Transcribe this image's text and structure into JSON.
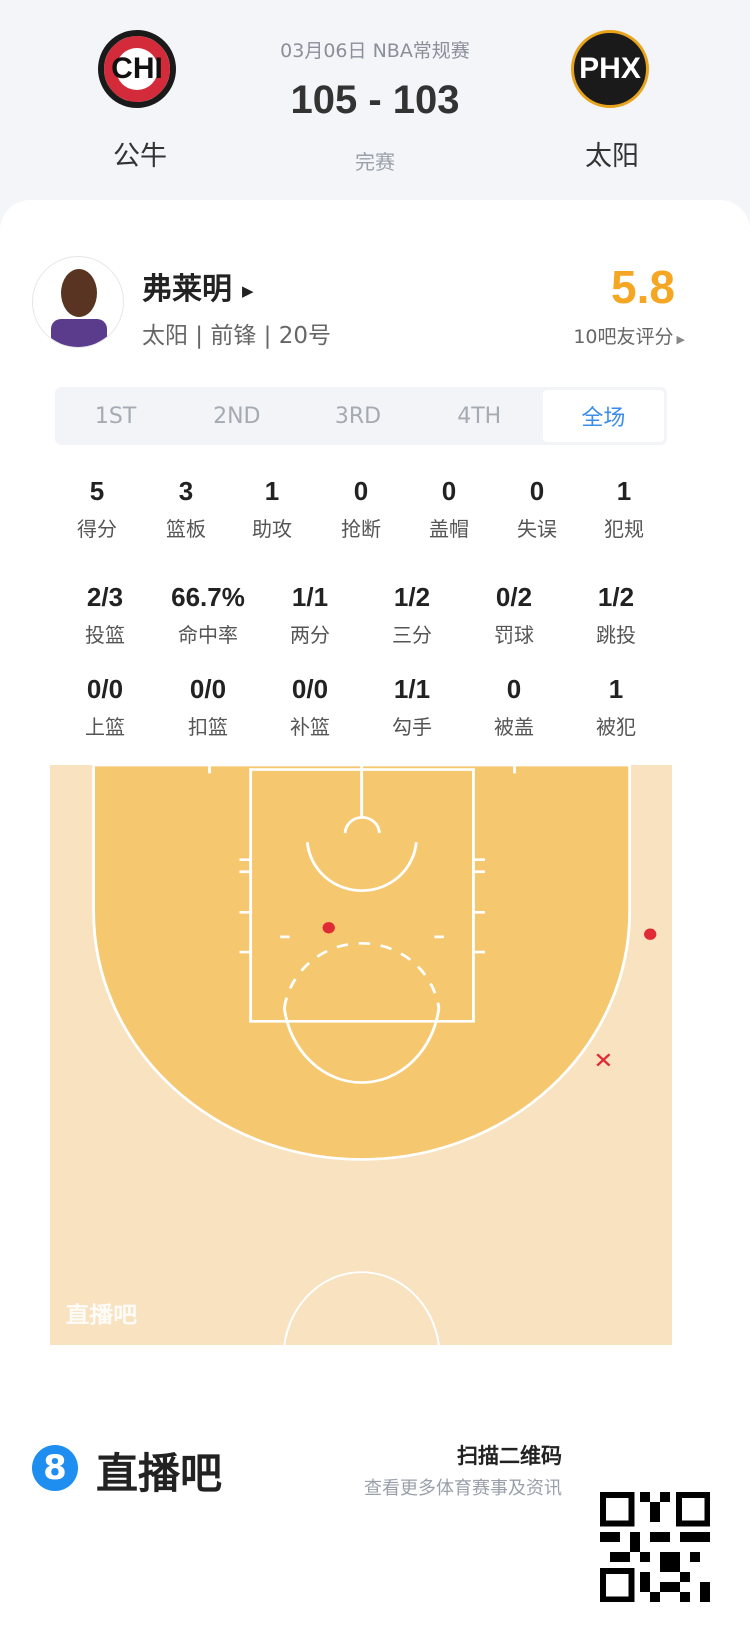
{
  "header": {
    "home_team": "公牛",
    "home_abbr": "CHI",
    "away_team": "太阳",
    "away_abbr": "PHX",
    "meta": "03月06日 NBA常规赛",
    "score": "105 - 103",
    "status": "完赛"
  },
  "player": {
    "name": "弗莱明",
    "info": "太阳 | 前锋 | 20号",
    "rating": "5.8",
    "rating_label": "10吧友评分",
    "rating_color": "#f5a623"
  },
  "tabs": [
    {
      "label": "1ST"
    },
    {
      "label": "2ND"
    },
    {
      "label": "3RD"
    },
    {
      "label": "4TH"
    },
    {
      "label": "全场",
      "active": true
    }
  ],
  "stats_row1": [
    {
      "v": "5",
      "l": "得分"
    },
    {
      "v": "3",
      "l": "篮板"
    },
    {
      "v": "1",
      "l": "助攻"
    },
    {
      "v": "0",
      "l": "抢断"
    },
    {
      "v": "0",
      "l": "盖帽"
    },
    {
      "v": "0",
      "l": "失误"
    },
    {
      "v": "1",
      "l": "犯规"
    }
  ],
  "stats_row2": [
    {
      "v": "2/3",
      "l": "投篮"
    },
    {
      "v": "66.7%",
      "l": "命中率"
    },
    {
      "v": "1/1",
      "l": "两分"
    },
    {
      "v": "1/2",
      "l": "三分"
    },
    {
      "v": "0/2",
      "l": "罚球"
    },
    {
      "v": "1/2",
      "l": "跳投"
    }
  ],
  "stats_row3": [
    {
      "v": "0/0",
      "l": "上篮"
    },
    {
      "v": "0/0",
      "l": "扣篮"
    },
    {
      "v": "0/0",
      "l": "补篮"
    },
    {
      "v": "1/1",
      "l": "勾手"
    },
    {
      "v": "0",
      "l": "被盖"
    },
    {
      "v": "1",
      "l": "被犯"
    }
  ],
  "shot_chart": {
    "made_color": "#e02a35",
    "shots": [
      {
        "result": "made",
        "zone": "paint"
      },
      {
        "result": "made",
        "zone": "right corner three"
      },
      {
        "result": "missed",
        "zone": "right wing three"
      }
    ],
    "watermark": "直播吧"
  },
  "footer": {
    "brand": "直播吧",
    "brand_color": "#1e8ef0",
    "scan_title": "扫描二维码",
    "scan_sub": "查看更多体育赛事及资讯"
  }
}
